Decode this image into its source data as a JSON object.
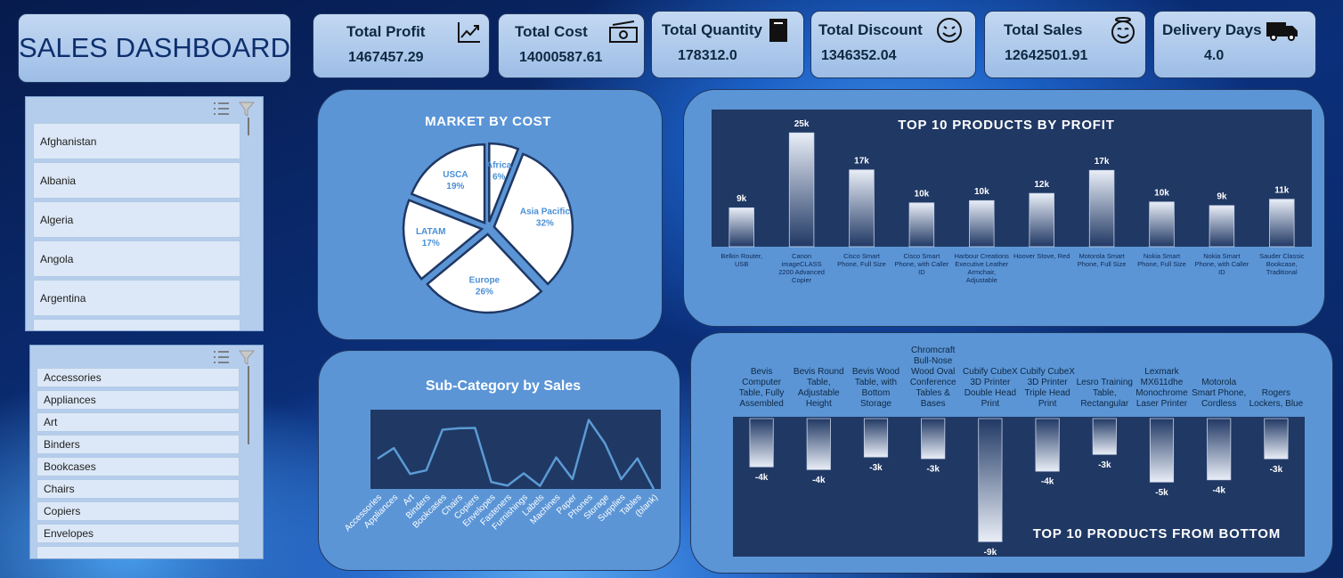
{
  "header": {
    "title": "SALES DASHBOARD"
  },
  "kpis": [
    {
      "label": "Total Profit",
      "value": "1467457.29"
    },
    {
      "label": "Total Cost",
      "value": "14000587.61"
    },
    {
      "label": "Total Quantity",
      "value": "178312.0"
    },
    {
      "label": "Total Discount",
      "value": "1346352.04"
    },
    {
      "label": "Total Sales",
      "value": "12642501.91"
    },
    {
      "label": "Delivery Days",
      "value": "4.0"
    }
  ],
  "slicers": [
    {
      "items": [
        "Afghanistan",
        "Albania",
        "Algeria",
        "Angola",
        "Argentina"
      ]
    },
    {
      "items": [
        "Accessories",
        "Appliances",
        "Art",
        "Binders",
        "Bookcases",
        "Chairs",
        "Copiers",
        "Envelopes"
      ]
    }
  ],
  "chart_data": [
    {
      "type": "pie",
      "title": "MARKET BY COST",
      "categories": [
        "Africa",
        "Asia Pacific",
        "Europe",
        "LATAM",
        "USCA"
      ],
      "values": [
        6,
        32,
        26,
        17,
        19
      ],
      "value_labels": [
        "6%",
        "32%",
        "26%",
        "17%",
        "19%"
      ],
      "color": "#ffffff",
      "edge_color": "#1f3864",
      "label_color": "#4a8fd6"
    },
    {
      "type": "bar",
      "title": "TOP 10 PRODUCTS BY PROFIT",
      "categories": [
        "Belkin Router, USB",
        "Canon imageCLASS 2200 Advanced Copier",
        "Cisco Smart Phone, Full Size",
        "Cisco Smart Phone, with Caller ID",
        "Harbour Creations Executive Leather Armchair, Adjustable",
        "Hoover Stove, Red",
        "Motorola Smart Phone, Full Size",
        "Nokia Smart Phone, Full Size",
        "Nokia Smart Phone, with Caller ID",
        "Sauder Classic Bookcase, Traditional"
      ],
      "values": [
        8600,
        25200,
        17000,
        9700,
        10200,
        11800,
        16900,
        9900,
        9100,
        10500
      ],
      "value_labels": [
        "9k",
        "25k",
        "17k",
        "10k",
        "10k",
        "12k",
        "17k",
        "10k",
        "9k",
        "11k"
      ],
      "color": "#203864"
    },
    {
      "type": "line",
      "title": "Sub-Category by Sales",
      "categories": [
        "Accessories",
        "Appliances",
        "Art",
        "Binders",
        "Bookcases",
        "Chairs",
        "Copiers",
        "Envelopes",
        "Fasteners",
        "Furnishings",
        "Labels",
        "Machines",
        "Paper",
        "Phones",
        "Storage",
        "Supplies",
        "Tables",
        "(blank)"
      ],
      "values": [
        749237,
        1011064,
        372092,
        461869,
        1466572,
        1501682,
        1509436,
        170904,
        83243,
        385578,
        73404,
        779060,
        244292,
        1706824,
        1127086,
        243075,
        757042,
        0
      ],
      "color": "#5b9bd5"
    },
    {
      "type": "bar",
      "title": "TOP 10 PRODUCTS FROM BOTTOM",
      "categories": [
        "Bevis Computer Table, Fully Assembled",
        "Bevis Round Table, Adjustable Height",
        "Bevis Wood Table, with Bottom Storage",
        "Chromcraft Bull-Nose Wood Oval Conference Tables & Bases",
        "Cubify CubeX 3D Printer Double Head Print",
        "Cubify CubeX 3D Printer Triple Head Print",
        "Lesro Training Table, Rectangular",
        "Lexmark MX611dhe Monochrome Laser Printer",
        "Motorola Smart Phone, Cordless",
        "Rogers Lockers, Blue"
      ],
      "values": [
        -3530,
        -3730,
        -2810,
        -2930,
        -9000,
        -3850,
        -2620,
        -4640,
        -4480,
        -2940
      ],
      "value_labels": [
        "-4k",
        "-4k",
        "-3k",
        "-3k",
        "-9k",
        "-4k",
        "-3k",
        "-5k",
        "-4k",
        "-3k"
      ],
      "color": "#203864"
    }
  ]
}
